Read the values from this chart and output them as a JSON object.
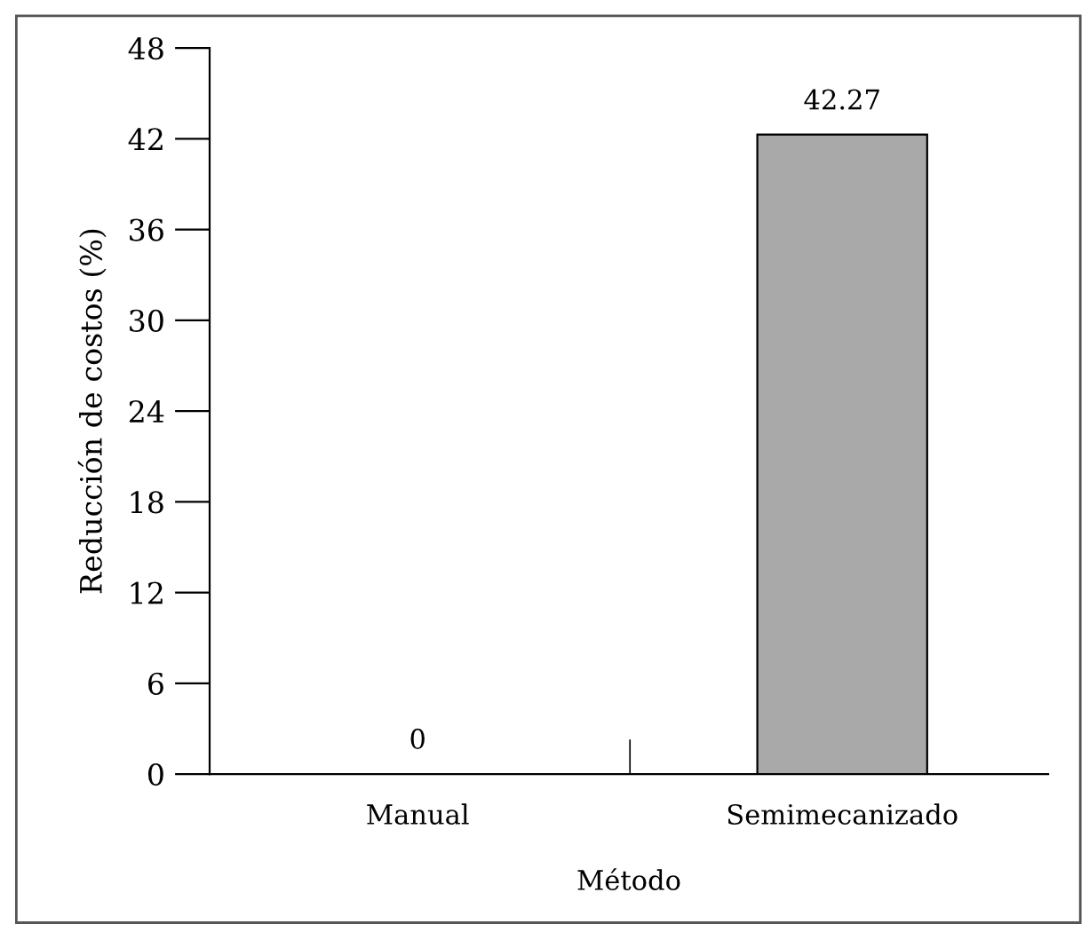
{
  "chart_data": {
    "type": "bar",
    "xlabel": "Método",
    "ylabel": "Reducción de costos (%)",
    "categories": [
      "Manual",
      "Semimecanizado"
    ],
    "values": [
      0,
      42.27
    ],
    "color": "#a9a9a9",
    "ylim": [
      0,
      48
    ],
    "yticks": [
      0,
      6,
      12,
      18,
      24,
      30,
      36,
      42,
      48
    ],
    "data_labels": true,
    "grid": false,
    "legend": false
  }
}
